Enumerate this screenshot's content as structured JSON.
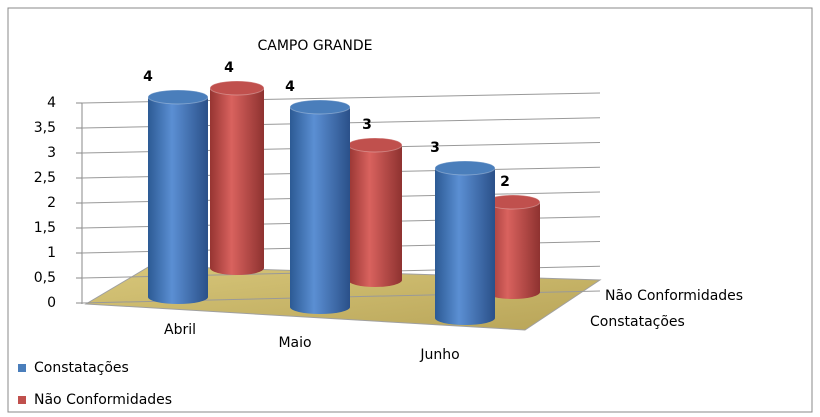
{
  "chart_data": {
    "type": "bar3d",
    "title": "CAMPO GRANDE",
    "categories": [
      "Abril",
      "Maio",
      "Junho"
    ],
    "series": [
      {
        "name": "Constatações",
        "color": "#4a7ebb",
        "values": [
          4,
          4,
          3
        ]
      },
      {
        "name": "Não Conformidades",
        "color": "#c0504d",
        "values": [
          4,
          3,
          2
        ]
      }
    ],
    "ylim": [
      0,
      4
    ],
    "yticks": [
      0,
      {
        "value": 0.5,
        "label": "0,5"
      },
      1,
      {
        "value": 1.5,
        "label": "1,5"
      },
      2,
      {
        "value": 2.5,
        "label": "2,5"
      },
      3,
      {
        "value": 3.5,
        "label": "3,5"
      },
      4
    ],
    "grid": true,
    "legend": "bottom-left"
  }
}
